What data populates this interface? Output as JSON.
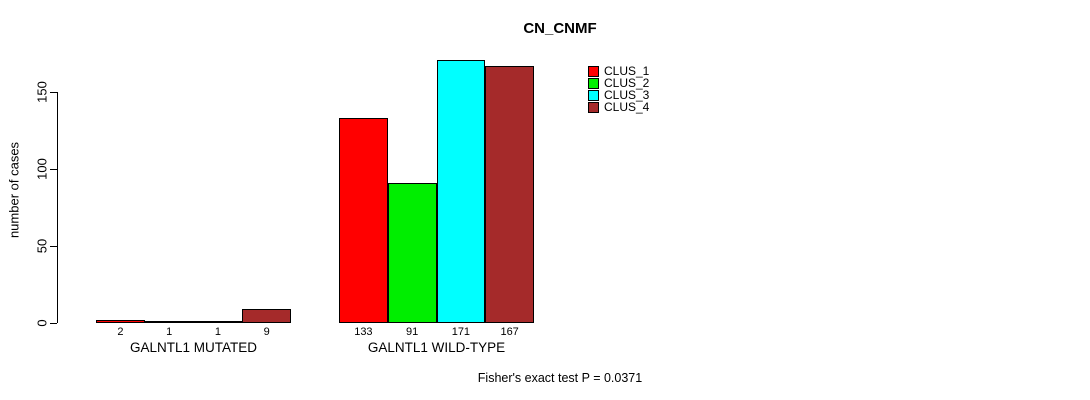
{
  "chart_data": {
    "type": "bar",
    "title": "CN_CNMF",
    "ylabel": "number of cases",
    "xlabel": "",
    "yticks": [
      0,
      50,
      100,
      150
    ],
    "ylim": [
      0,
      175
    ],
    "grid": false,
    "legend_position": "top-right",
    "categories": [
      "GALNTL1 MUTATED",
      "GALNTL1 WILD-TYPE"
    ],
    "series": [
      {
        "name": "CLUS_1",
        "color": "#FF0000",
        "values": [
          2,
          133
        ]
      },
      {
        "name": "CLUS_2",
        "color": "#00EE00",
        "values": [
          1,
          91
        ]
      },
      {
        "name": "CLUS_3",
        "color": "#00FFFF",
        "values": [
          1,
          171
        ]
      },
      {
        "name": "CLUS_4",
        "color": "#A52A2A",
        "values": [
          9,
          167
        ]
      }
    ],
    "bar_value_labels": [
      [
        "2",
        "1",
        "1",
        "9"
      ],
      [
        "133",
        "91",
        "171",
        "167"
      ]
    ],
    "footnote": "Fisher's exact test P = 0.0371",
    "axis_color": "#000000",
    "bar_border_color": "#000000"
  }
}
